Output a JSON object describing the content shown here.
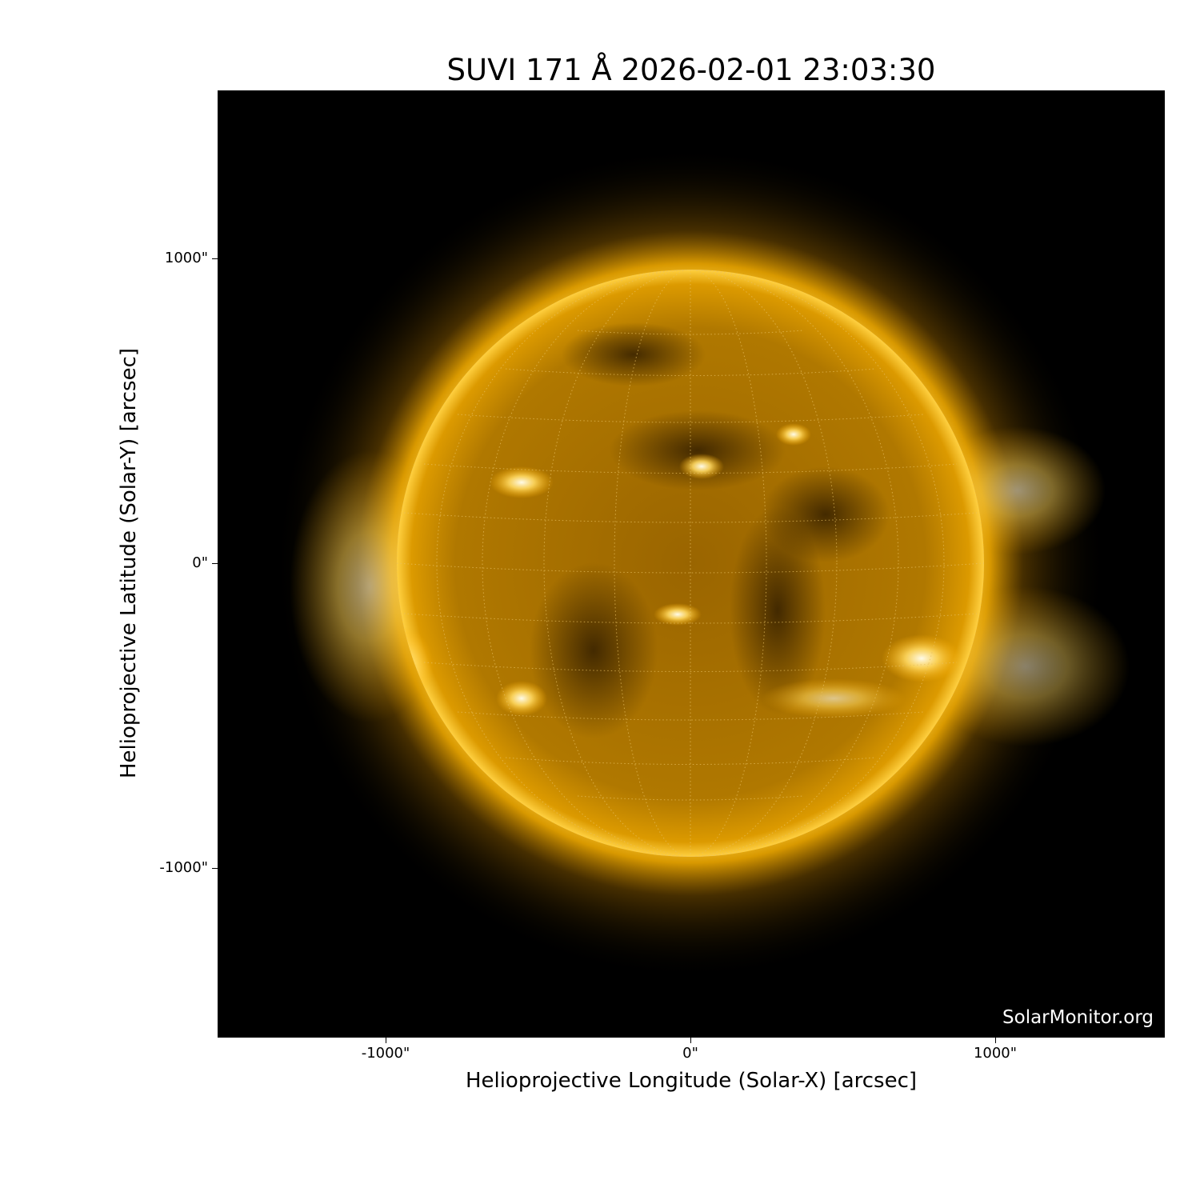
{
  "title": "SUVI 171 Å 2026-02-01 23:03:30",
  "watermark": "SolarMonitor.org",
  "x_axis": {
    "label": "Helioprojective Longitude (Solar-X) [arcsec]",
    "ticks": [
      "-1000\"",
      "0\"",
      "1000\""
    ]
  },
  "y_axis": {
    "label": "Helioprojective Latitude (Solar-Y) [arcsec]",
    "ticks": [
      "1000\"",
      "0\"",
      "-1000\""
    ]
  },
  "colors": {
    "sun_core": "#ffb000",
    "sun_dark": "#6a4300",
    "corona": "#ffc400",
    "background": "#000000"
  }
}
